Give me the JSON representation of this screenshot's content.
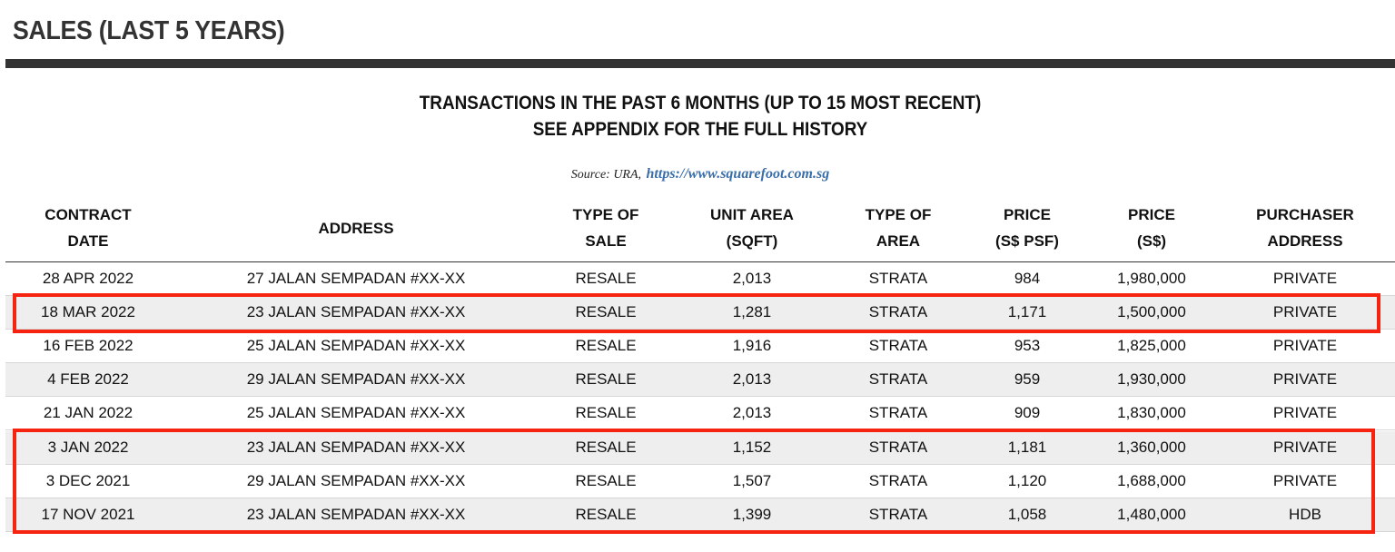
{
  "page_title": "SALES (LAST 5 YEARS)",
  "heading_line1": "TRANSACTIONS IN THE PAST 6 MONTHS (UP TO 15 MOST RECENT)",
  "heading_line2": "SEE APPENDIX FOR THE FULL HISTORY",
  "source_label": "Source: URA,",
  "source_link": "https://www.squarefoot.com.sg",
  "columns": [
    {
      "line1": "CONTRACT",
      "line2": "DATE"
    },
    {
      "line1": "ADDRESS",
      "line2": ""
    },
    {
      "line1": "TYPE OF",
      "line2": "SALE"
    },
    {
      "line1": "UNIT AREA",
      "line2": "(SQFT)"
    },
    {
      "line1": "TYPE OF",
      "line2": "AREA"
    },
    {
      "line1": "PRICE",
      "line2": "(S$ PSF)"
    },
    {
      "line1": "PRICE",
      "line2": "(S$)"
    },
    {
      "line1": "PURCHASER",
      "line2": "ADDRESS"
    }
  ],
  "rows": [
    [
      "28 APR 2022",
      "27 JALAN SEMPADAN #XX-XX",
      "RESALE",
      "2,013",
      "STRATA",
      "984",
      "1,980,000",
      "PRIVATE"
    ],
    [
      "18 MAR 2022",
      "23 JALAN SEMPADAN #XX-XX",
      "RESALE",
      "1,281",
      "STRATA",
      "1,171",
      "1,500,000",
      "PRIVATE"
    ],
    [
      "16 FEB 2022",
      "25 JALAN SEMPADAN #XX-XX",
      "RESALE",
      "1,916",
      "STRATA",
      "953",
      "1,825,000",
      "PRIVATE"
    ],
    [
      "4 FEB 2022",
      "29 JALAN SEMPADAN #XX-XX",
      "RESALE",
      "2,013",
      "STRATA",
      "959",
      "1,930,000",
      "PRIVATE"
    ],
    [
      "21 JAN 2022",
      "25 JALAN SEMPADAN #XX-XX",
      "RESALE",
      "2,013",
      "STRATA",
      "909",
      "1,830,000",
      "PRIVATE"
    ],
    [
      "3 JAN 2022",
      "23 JALAN SEMPADAN #XX-XX",
      "RESALE",
      "1,152",
      "STRATA",
      "1,181",
      "1,360,000",
      "PRIVATE"
    ],
    [
      "3 DEC 2021",
      "29 JALAN SEMPADAN #XX-XX",
      "RESALE",
      "1,507",
      "STRATA",
      "1,120",
      "1,688,000",
      "PRIVATE"
    ],
    [
      "17 NOV 2021",
      "23 JALAN SEMPADAN #XX-XX",
      "RESALE",
      "1,399",
      "STRATA",
      "1,058",
      "1,480,000",
      "HDB"
    ]
  ],
  "highlight_color": "#f5230f"
}
